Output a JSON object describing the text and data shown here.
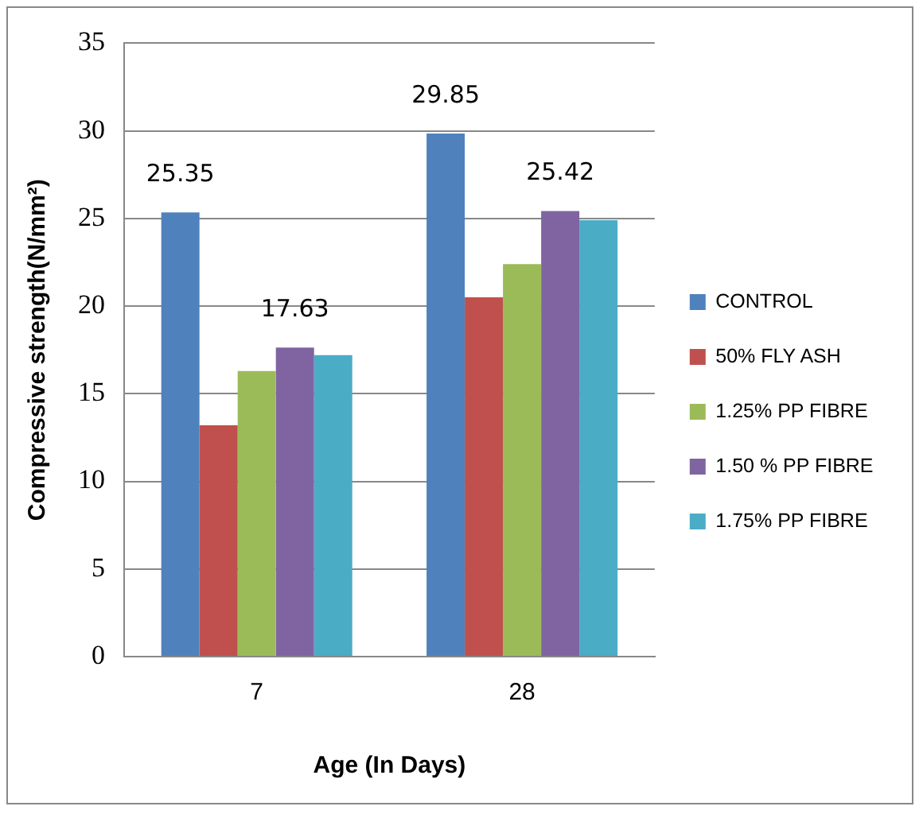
{
  "chart_data": {
    "type": "bar",
    "xlabel": "Age (In Days)",
    "ylabel": "Compressive strength(N/mm²)",
    "categories": [
      "7",
      "28"
    ],
    "series": [
      {
        "name": "CONTROL",
        "color": "#4f81bd",
        "values": [
          25.35,
          29.85
        ],
        "value_labels": [
          "25.35",
          "29.85"
        ]
      },
      {
        "name": "50% FLY ASH",
        "color": "#c0504d",
        "values": [
          13.2,
          20.5
        ],
        "value_labels": [
          null,
          null
        ]
      },
      {
        "name": "1.25% PP FIBRE",
        "color": "#9bbb59",
        "values": [
          16.3,
          22.4
        ],
        "value_labels": [
          null,
          null
        ]
      },
      {
        "name": "1.50 % PP FIBRE",
        "color": "#8064a2",
        "values": [
          17.63,
          25.42
        ],
        "value_labels": [
          "17.63",
          "25.42"
        ]
      },
      {
        "name": "1.75% PP FIBRE",
        "color": "#4bacc6",
        "values": [
          17.2,
          24.9
        ],
        "value_labels": [
          null,
          null
        ]
      }
    ],
    "ylim": [
      0,
      35
    ],
    "yticks": [
      0,
      5,
      10,
      15,
      20,
      25,
      30,
      35
    ],
    "grid": "y",
    "legend": "right"
  }
}
